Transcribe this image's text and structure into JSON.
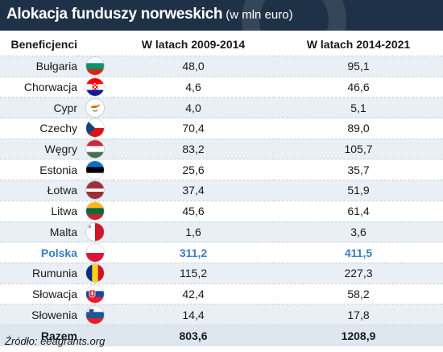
{
  "title": "Alokacja funduszy norweskich",
  "subtitle": "(w mln euro)",
  "source": "Źródło: eeagrants.org",
  "colors": {
    "header_bg": "#1f3147",
    "highlight": "#3a7cc4",
    "stripe": "#e9eff4"
  },
  "chart_data": {
    "type": "table",
    "title": "Alokacja funduszy norweskich (w mln euro)",
    "columns": [
      "Beneficjenci",
      "W latach 2009-2014",
      "W latach 2014-2021"
    ],
    "rows": [
      {
        "country": "Bułgaria",
        "flag": "bulgaria-flag",
        "a": "48,0",
        "b": "95,1"
      },
      {
        "country": "Chorwacja",
        "flag": "croatia-flag",
        "a": "4,6",
        "b": "46,6"
      },
      {
        "country": "Cypr",
        "flag": "cyprus-flag",
        "a": "4,0",
        "b": "5,1"
      },
      {
        "country": "Czechy",
        "flag": "czechia-flag",
        "a": "70,4",
        "b": "89,0"
      },
      {
        "country": "Węgry",
        "flag": "hungary-flag",
        "a": "83,2",
        "b": "105,7"
      },
      {
        "country": "Estonia",
        "flag": "estonia-flag",
        "a": "25,6",
        "b": "35,7"
      },
      {
        "country": "Łotwa",
        "flag": "latvia-flag",
        "a": "37,4",
        "b": "51,9"
      },
      {
        "country": "Litwa",
        "flag": "lithuania-flag",
        "a": "45,6",
        "b": "61,4"
      },
      {
        "country": "Malta",
        "flag": "malta-flag",
        "a": "1,6",
        "b": "3,6"
      },
      {
        "country": "Polska",
        "flag": "poland-flag",
        "a": "311,2",
        "b": "411,5",
        "highlight": true
      },
      {
        "country": "Rumunia",
        "flag": "romania-flag",
        "a": "115,2",
        "b": "227,3"
      },
      {
        "country": "Słowacja",
        "flag": "slovakia-flag",
        "a": "42,4",
        "b": "58,2"
      },
      {
        "country": "Słowenia",
        "flag": "slovenia-flag",
        "a": "14,4",
        "b": "17,8"
      }
    ],
    "total": {
      "label": "Razem",
      "a": "803,6",
      "b": "1208,9"
    }
  }
}
